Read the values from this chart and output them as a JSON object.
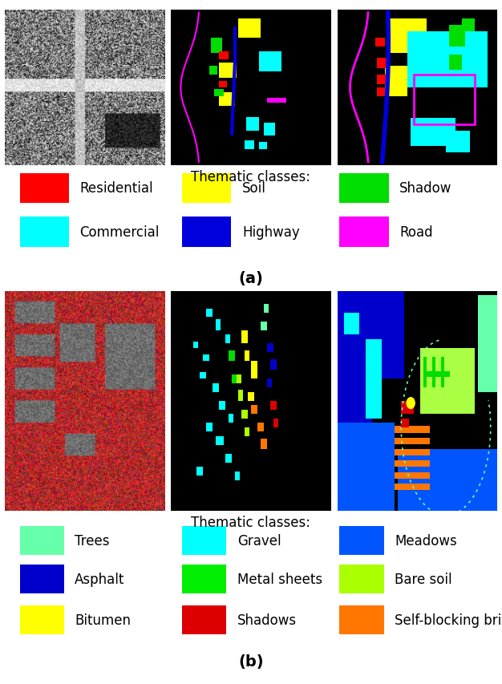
{
  "section_a": {
    "title": "(a)",
    "thematic_header": "Thematic classes:",
    "legend": [
      {
        "label": "Residential",
        "color": "#ff0000"
      },
      {
        "label": "Soil",
        "color": "#ffff00"
      },
      {
        "label": "Shadow",
        "color": "#00dd00"
      },
      {
        "label": "Commercial",
        "color": "#00ffff"
      },
      {
        "label": "Highway",
        "color": "#0000dd"
      },
      {
        "label": "Road",
        "color": "#ff00ff"
      }
    ]
  },
  "section_b": {
    "title": "(b)",
    "thematic_header": "Thematic classes:",
    "legend": [
      {
        "label": "Trees",
        "color": "#66ffaa"
      },
      {
        "label": "Gravel",
        "color": "#00ffff"
      },
      {
        "label": "Meadows",
        "color": "#0055ff"
      },
      {
        "label": "Asphalt",
        "color": "#0000cc"
      },
      {
        "label": "Metal sheets",
        "color": "#00ee00"
      },
      {
        "label": "Bare soil",
        "color": "#aaff00"
      },
      {
        "label": "Bitumen",
        "color": "#ffff00"
      },
      {
        "label": "Shadows",
        "color": "#dd0000"
      },
      {
        "label": "Self-blocking bricks",
        "color": "#ff7700"
      }
    ]
  },
  "bg_color": "#ffffff",
  "font_size_legend": 12,
  "font_size_header": 12,
  "font_size_title": 14
}
